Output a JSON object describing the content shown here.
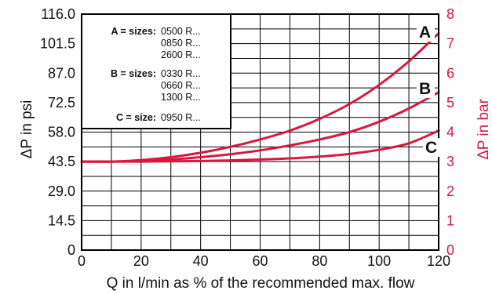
{
  "chart_data": {
    "type": "line",
    "xlabel": "Q in l/min as % of the recommended max. flow",
    "ylabel_left": "ΔP in psi",
    "ylabel_right": "ΔP in bar",
    "x_range": [
      0,
      120
    ],
    "y_right_range": [
      0,
      8
    ],
    "x_ticks": [
      "0",
      "20",
      "40",
      "60",
      "80",
      "100",
      "120"
    ],
    "y_left_ticks": [
      "0",
      "14.5",
      "29.0",
      "43.5",
      "58.0",
      "72.5",
      "87.0",
      "101.5",
      "116.0"
    ],
    "y_right_ticks": [
      "0",
      "1",
      "2",
      "3",
      "4",
      "5",
      "6",
      "7",
      "8"
    ],
    "grid": true,
    "legend": [
      {
        "key": "A = sizes:",
        "values": [
          "0500 R...",
          "0850 R...",
          "2600 R..."
        ]
      },
      {
        "key": "B = sizes:",
        "values": [
          "0330 R...",
          "0660 R...",
          "1300 R..."
        ]
      },
      {
        "key": "C = size:",
        "values": [
          "0950 R..."
        ]
      }
    ],
    "series": [
      {
        "name": "A",
        "x": [
          0,
          10,
          20,
          30,
          40,
          50,
          60,
          70,
          80,
          90,
          100,
          110,
          120
        ],
        "y": [
          3.0,
          3.0,
          3.05,
          3.15,
          3.3,
          3.5,
          3.75,
          4.05,
          4.45,
          4.95,
          5.6,
          6.4,
          7.35
        ]
      },
      {
        "name": "B",
        "x": [
          0,
          10,
          20,
          30,
          40,
          50,
          60,
          70,
          80,
          90,
          100,
          110,
          120
        ],
        "y": [
          3.0,
          3.0,
          3.02,
          3.07,
          3.15,
          3.25,
          3.38,
          3.55,
          3.75,
          4.0,
          4.35,
          4.8,
          5.35
        ]
      },
      {
        "name": "C",
        "x": [
          0,
          10,
          20,
          30,
          40,
          50,
          60,
          70,
          80,
          90,
          100,
          110,
          120
        ],
        "y": [
          3.0,
          3.0,
          3.0,
          3.01,
          3.02,
          3.04,
          3.07,
          3.11,
          3.17,
          3.26,
          3.4,
          3.62,
          4.05
        ]
      }
    ]
  },
  "colors": {
    "curve": "#d9173f",
    "right_axis": "#d9173f",
    "grid": "#000000",
    "text": "#111111"
  }
}
